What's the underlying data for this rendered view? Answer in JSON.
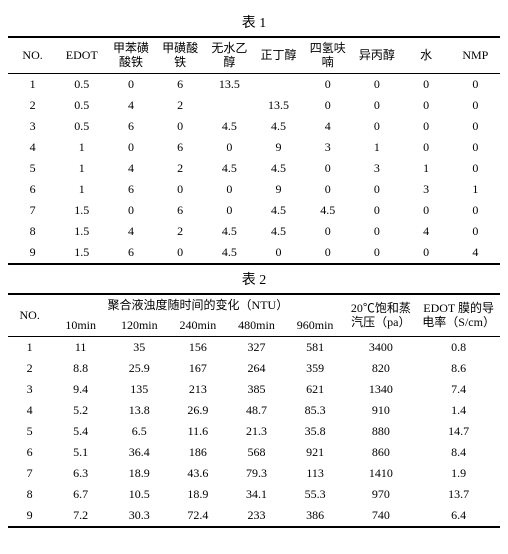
{
  "table1": {
    "title": "表 1",
    "columns": [
      "NO.",
      "EDOT",
      "甲苯磺酸铁",
      "甲磺酸铁",
      "无水乙醇",
      "正丁醇",
      "四氢呋喃",
      "异丙醇",
      "水",
      "NMP"
    ],
    "rows": [
      [
        "1",
        "0.5",
        "0",
        "6",
        "13.5",
        "",
        "0",
        "0",
        "0",
        "0"
      ],
      [
        "2",
        "0.5",
        "4",
        "2",
        "",
        "13.5",
        "0",
        "0",
        "0",
        "0"
      ],
      [
        "3",
        "0.5",
        "6",
        "0",
        "4.5",
        "4.5",
        "4",
        "0",
        "0",
        "0"
      ],
      [
        "4",
        "1",
        "0",
        "6",
        "0",
        "9",
        "3",
        "1",
        "0",
        "0"
      ],
      [
        "5",
        "1",
        "4",
        "2",
        "4.5",
        "4.5",
        "0",
        "3",
        "1",
        "0"
      ],
      [
        "6",
        "1",
        "6",
        "0",
        "0",
        "9",
        "0",
        "0",
        "3",
        "1"
      ],
      [
        "7",
        "1.5",
        "0",
        "6",
        "0",
        "4.5",
        "4.5",
        "0",
        "0",
        "0"
      ],
      [
        "8",
        "1.5",
        "4",
        "2",
        "4.5",
        "4.5",
        "0",
        "0",
        "4",
        "0"
      ],
      [
        "9",
        "1.5",
        "6",
        "0",
        "4.5",
        "0",
        "0",
        "0",
        "0",
        "4"
      ]
    ]
  },
  "table2": {
    "title": "表 2",
    "header_group": "聚合液浊度随时间的变化（NTU）",
    "header_no": "NO.",
    "header_pressure": "20℃饱和蒸汽压（pa）",
    "header_cond": "EDOT 膜的导电率（S/cm）",
    "time_cols": [
      "10min",
      "120min",
      "240min",
      "480min",
      "960min"
    ],
    "rows": [
      [
        "1",
        "11",
        "35",
        "156",
        "327",
        "581",
        "3400",
        "0.8"
      ],
      [
        "2",
        "8.8",
        "25.9",
        "167",
        "264",
        "359",
        "820",
        "8.6"
      ],
      [
        "3",
        "9.4",
        "135",
        "213",
        "385",
        "621",
        "1340",
        "7.4"
      ],
      [
        "4",
        "5.2",
        "13.8",
        "26.9",
        "48.7",
        "85.3",
        "910",
        "1.4"
      ],
      [
        "5",
        "5.4",
        "6.5",
        "11.6",
        "21.3",
        "35.8",
        "880",
        "14.7"
      ],
      [
        "6",
        "5.1",
        "36.4",
        "186",
        "568",
        "921",
        "860",
        "8.4"
      ],
      [
        "7",
        "6.3",
        "18.9",
        "43.6",
        "79.3",
        "113",
        "1410",
        "1.9"
      ],
      [
        "8",
        "6.7",
        "10.5",
        "18.9",
        "34.1",
        "55.3",
        "970",
        "13.7"
      ],
      [
        "9",
        "7.2",
        "30.3",
        "72.4",
        "233",
        "386",
        "740",
        "6.4"
      ]
    ]
  }
}
